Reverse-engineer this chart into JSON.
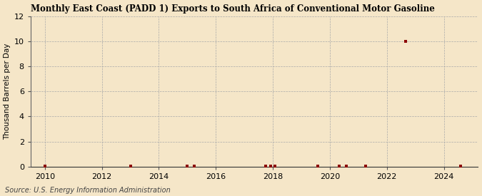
{
  "title": "Monthly East Coast (PADD 1) Exports to South Africa of Conventional Motor Gasoline",
  "ylabel": "Thousand Barrels per Day",
  "source": "Source: U.S. Energy Information Administration",
  "background_color": "#f5e6c8",
  "plot_background_color": "#f5e6c8",
  "grid_color": "#aaaaaa",
  "marker_color": "#8b0000",
  "xlim": [
    2009.5,
    2025.2
  ],
  "ylim": [
    0,
    12
  ],
  "yticks": [
    0,
    2,
    4,
    6,
    8,
    10,
    12
  ],
  "xticks": [
    2010,
    2012,
    2014,
    2016,
    2018,
    2020,
    2022,
    2024
  ],
  "data_x": [
    2010.0,
    2013.0,
    2015.0,
    2015.25,
    2017.75,
    2017.917,
    2018.083,
    2019.583,
    2020.333,
    2020.583,
    2021.25,
    2022.667,
    2024.583
  ],
  "data_y": [
    0.05,
    0.05,
    0.05,
    0.05,
    0.05,
    0.05,
    0.05,
    0.05,
    0.05,
    0.05,
    0.05,
    10.0,
    0.05
  ]
}
